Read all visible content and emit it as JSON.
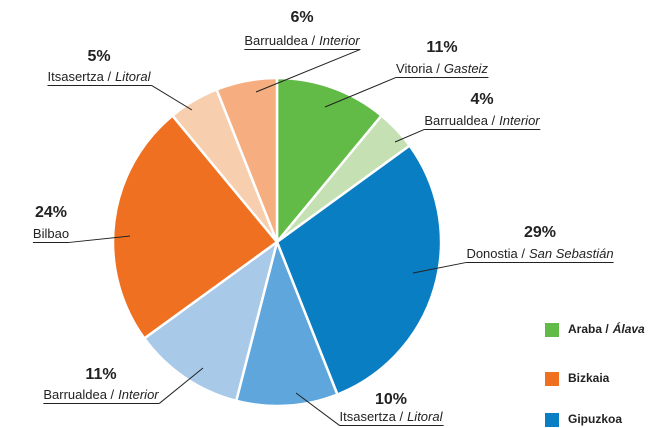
{
  "chart_data": {
    "type": "pie",
    "categories": [
      [
        "Vitoria /",
        "Gasteiz"
      ],
      [
        "Barrualdea /",
        "Interior"
      ],
      [
        "Donostia /",
        "San Sebastián"
      ],
      [
        "Itsasertza /",
        "Litoral"
      ],
      [
        "Barrualdea /",
        "Interior"
      ],
      [
        "Bilbao"
      ],
      [
        "Itsasertza /",
        "Litoral"
      ],
      [
        "Barrualdea /",
        "Interior"
      ]
    ],
    "values": [
      11,
      4,
      29,
      10,
      11,
      24,
      5,
      6
    ],
    "value_labels": [
      "11%",
      "4%",
      "29%",
      "10%",
      "11%",
      "24%",
      "5%",
      "6%"
    ],
    "colors": [
      "#62bb46",
      "#c5e0b3",
      "#0a7ec2",
      "#5ea6dc",
      "#a9c9e9",
      "#f07022",
      "#f8cfae",
      "#f6ad80"
    ],
    "legend": [
      {
        "name": [
          "Araba /",
          "Álava"
        ],
        "color": "#62bb46"
      },
      {
        "name": [
          "Bizkaia"
        ],
        "color": "#f07022"
      },
      {
        "name": [
          "Gipuzkoa"
        ],
        "color": "#0a7ec2"
      }
    ]
  }
}
